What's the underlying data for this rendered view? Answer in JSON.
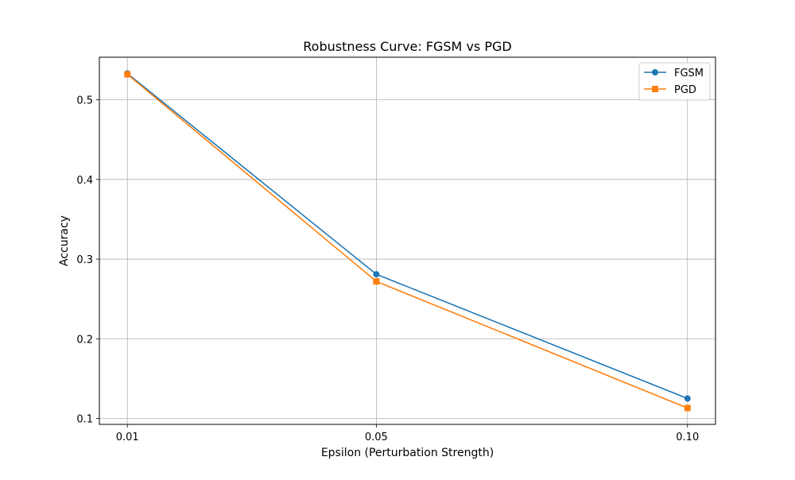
{
  "chart_data": {
    "type": "line",
    "title": "Robustness Curve: FGSM vs PGD",
    "xlabel": "Epsilon (Perturbation Strength)",
    "ylabel": "Accuracy",
    "categories": [
      "0.01",
      "0.05",
      "0.10"
    ],
    "x": [
      0.01,
      0.05,
      0.1
    ],
    "xlim": [
      0.0055,
      0.1045
    ],
    "ylim": [
      0.0925,
      0.5535
    ],
    "yticks": [
      0.1,
      0.2,
      0.3,
      0.4,
      0.5
    ],
    "ytick_labels": [
      "0.1",
      "0.2",
      "0.3",
      "0.4",
      "0.5"
    ],
    "grid": true,
    "legend_position": "top-right",
    "series": [
      {
        "name": "FGSM",
        "values": [
          0.533,
          0.281,
          0.125
        ],
        "color": "#1f77b4",
        "marker": "circle"
      },
      {
        "name": "PGD",
        "values": [
          0.532,
          0.272,
          0.113
        ],
        "color": "#ff7f0e",
        "marker": "square"
      }
    ]
  }
}
